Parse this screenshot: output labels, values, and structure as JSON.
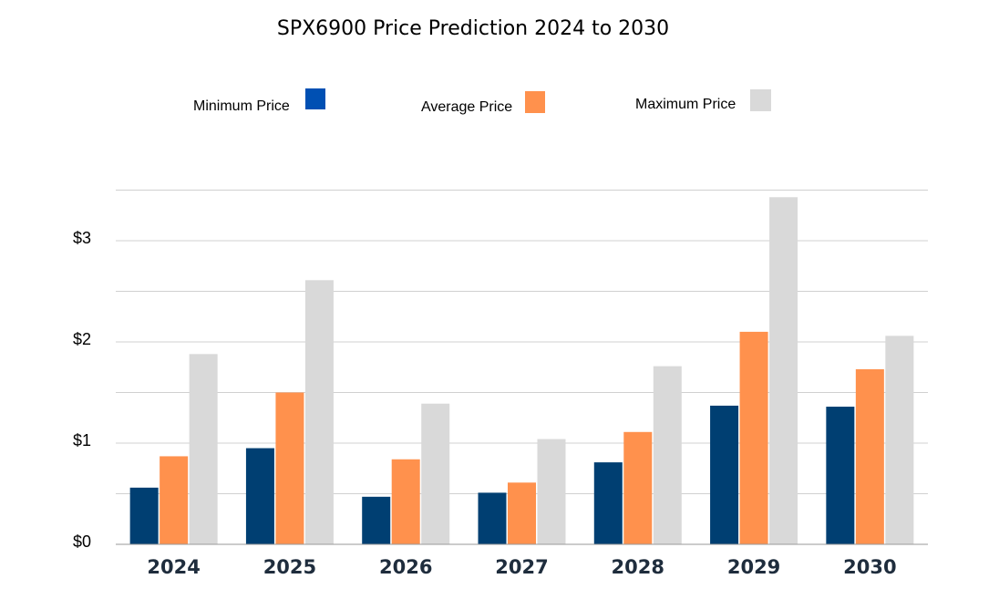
{
  "chart_data": {
    "type": "bar",
    "title": "SPX6900 Price Prediction  2024 to 2030",
    "categories": [
      "2024",
      "2025",
      "2026",
      "2027",
      "2028",
      "2029",
      "2030"
    ],
    "series": [
      {
        "name": "Minimum Price",
        "color": "#003f72",
        "legend_color": "#0050b3",
        "values": [
          0.56,
          0.95,
          0.47,
          0.51,
          0.81,
          1.37,
          1.36
        ]
      },
      {
        "name": "Average Price",
        "color": "#ff914d",
        "legend_color": "#ff914d",
        "values": [
          0.87,
          1.5,
          0.84,
          0.61,
          1.11,
          2.1,
          1.73
        ]
      },
      {
        "name": "Maximum Price",
        "color": "#d9d9d9",
        "legend_color": "#d9d9d9",
        "values": [
          1.88,
          2.61,
          1.39,
          1.04,
          1.76,
          3.43,
          2.06
        ]
      }
    ],
    "y_ticks": [
      "$0",
      "$1",
      "$2",
      "$3"
    ],
    "ylim": [
      0,
      3.5
    ],
    "grid": true,
    "legend_position": "top"
  }
}
